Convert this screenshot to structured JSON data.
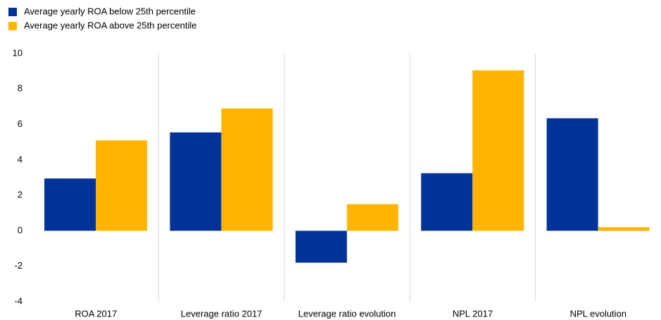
{
  "chart_data": {
    "type": "bar",
    "categories": [
      "ROA 2017",
      "Leverage ratio 2017",
      "Leverage ratio evolution",
      "NPL 2017",
      "NPL evolution"
    ],
    "series": [
      {
        "name": "Average yearly ROA below 25th percentile",
        "color": "#003399",
        "values": [
          2.95,
          5.55,
          -1.8,
          3.25,
          6.35
        ]
      },
      {
        "name": "Average yearly ROA above 25th percentile",
        "color": "#ffb400",
        "values": [
          5.1,
          6.9,
          1.5,
          9.05,
          0.2
        ]
      }
    ],
    "ylim": [
      -4,
      10
    ],
    "yticks": [
      -4,
      -2,
      0,
      2,
      4,
      6,
      8,
      10
    ],
    "legend": "top-left"
  }
}
